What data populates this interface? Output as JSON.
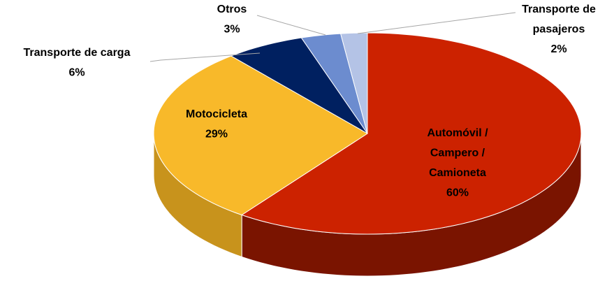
{
  "chart_data": {
    "type": "pie3d",
    "categories": [
      "Automóvil / Campero / Camioneta",
      "Motocicleta",
      "Transporte de carga",
      "Otros",
      "Transporte de pasajeros"
    ],
    "values": [
      60,
      29,
      6,
      3,
      2
    ],
    "value_labels": [
      "60%",
      "29%",
      "6%",
      "3%",
      "2%"
    ],
    "colors": [
      "#cc2200",
      "#f8b92a",
      "#002060",
      "#6c8ccf",
      "#b4c3e6"
    ],
    "side_colors": [
      "#7a1400",
      "#c8931c",
      "#001238",
      "#4a6396",
      "#8291b0"
    ]
  }
}
